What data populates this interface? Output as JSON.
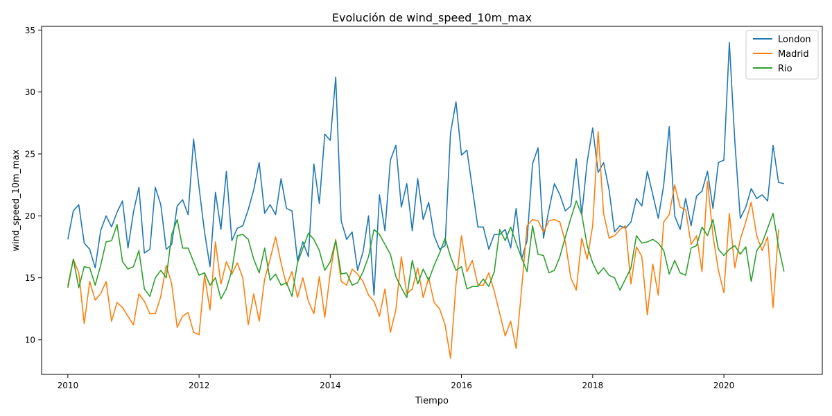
{
  "chart_data": {
    "type": "line",
    "title": "Evolución de wind_speed_10m_max",
    "xlabel": "Tiempo",
    "ylabel": "wind_speed_10m_max",
    "x_start": "2010-01",
    "x_end": "2021-01",
    "x_frequency": "monthly",
    "xlim": [
      2009.6,
      2021.5
    ],
    "ylim": [
      7.2,
      35.3
    ],
    "x_ticks": [
      2010,
      2012,
      2014,
      2016,
      2018,
      2020
    ],
    "x_tick_labels": [
      "2010",
      "2012",
      "2014",
      "2016",
      "2018",
      "2020"
    ],
    "y_ticks": [
      10,
      15,
      20,
      25,
      30,
      35
    ],
    "y_tick_labels": [
      "10",
      "15",
      "20",
      "25",
      "30",
      "35"
    ],
    "grid": false,
    "legend_position": "top-right",
    "series": [
      {
        "name": "London",
        "color": "#1f77b4",
        "values": [
          18.1,
          20.4,
          20.9,
          17.8,
          17.3,
          15.8,
          18.8,
          20.0,
          19.1,
          20.3,
          21.2,
          17.4,
          20.3,
          22.3,
          17.0,
          17.3,
          22.3,
          20.9,
          17.3,
          17.7,
          20.8,
          21.3,
          20.1,
          26.2,
          22.3,
          18.7,
          15.9,
          21.9,
          18.9,
          23.6,
          18.0,
          19.0,
          19.2,
          20.5,
          22.1,
          24.3,
          20.2,
          20.9,
          20.1,
          23.0,
          20.6,
          20.4,
          16.4,
          17.9,
          16.7,
          24.2,
          21.0,
          26.6,
          26.1,
          31.2,
          19.6,
          18.1,
          18.7,
          15.6,
          17.1,
          20.0,
          13.6,
          21.7,
          18.8,
          24.5,
          25.7,
          20.7,
          22.6,
          18.8,
          23.0,
          19.7,
          21.1,
          18.4,
          17.3,
          17.6,
          26.7,
          29.2,
          24.9,
          25.3,
          22.2,
          19.1,
          19.1,
          17.3,
          18.5,
          18.5,
          18.9,
          17.4,
          20.6,
          16.5,
          18.0,
          24.2,
          25.5,
          18.2,
          20.5,
          22.6,
          21.7,
          20.4,
          20.8,
          24.6,
          20.1,
          24.4,
          27.1,
          23.5,
          24.3,
          22.1,
          18.7,
          19.2,
          19.0,
          19.5,
          21.4,
          20.8,
          23.6,
          21.7,
          19.8,
          22.5,
          27.2,
          20.0,
          18.9,
          21.4,
          19.2,
          21.6,
          22.0,
          23.6,
          20.6,
          24.3,
          24.5,
          34.0,
          26.0,
          19.8,
          20.7,
          22.2,
          21.4,
          21.7,
          21.2,
          25.7,
          22.7,
          22.6
        ]
      },
      {
        "name": "Madrid",
        "color": "#ff7f0e",
        "values": [
          14.4,
          16.5,
          15.4,
          11.3,
          14.7,
          13.2,
          13.7,
          14.7,
          11.5,
          13.0,
          12.6,
          11.9,
          11.2,
          13.7,
          13.1,
          12.1,
          12.1,
          13.5,
          16.0,
          14.5,
          11.0,
          11.9,
          12.2,
          10.6,
          10.4,
          15.2,
          12.4,
          17.9,
          14.5,
          16.3,
          15.3,
          16.2,
          15.0,
          11.2,
          13.7,
          11.5,
          14.9,
          16.5,
          18.3,
          16.2,
          14.4,
          15.5,
          13.4,
          15.0,
          13.1,
          12.1,
          15.1,
          11.8,
          15.4,
          18.1,
          14.7,
          14.4,
          15.7,
          15.3,
          14.7,
          13.6,
          13.1,
          11.9,
          14.1,
          10.6,
          12.4,
          16.7,
          13.7,
          14.1,
          15.8,
          13.4,
          15.0,
          13.0,
          12.5,
          11.2,
          8.5,
          14.5,
          18.4,
          15.5,
          16.4,
          14.4,
          14.4,
          15.4,
          13.9,
          12.1,
          10.3,
          11.5,
          9.3,
          14.1,
          19.2,
          19.7,
          19.6,
          18.7,
          19.6,
          19.7,
          19.5,
          17.9,
          15.0,
          14.0,
          18.2,
          16.5,
          19.2,
          26.8,
          20.2,
          18.2,
          18.4,
          18.9,
          19.2,
          14.5,
          17.5,
          16.7,
          12.0,
          16.1,
          13.6,
          19.5,
          20.1,
          22.5,
          20.7,
          20.5,
          17.7,
          18.4,
          15.5,
          22.8,
          18.4,
          15.6,
          13.8,
          20.2,
          15.8,
          18.1,
          19.5,
          21.1,
          18.4,
          17.2,
          18.3,
          12.6,
          18.9
        ]
      },
      {
        "name": "Rio",
        "color": "#2ca02c",
        "values": [
          14.2,
          16.5,
          14.2,
          15.9,
          15.8,
          14.4,
          16.0,
          17.9,
          18.0,
          19.3,
          16.3,
          15.7,
          15.9,
          17.2,
          14.1,
          13.5,
          15.0,
          15.6,
          15.0,
          18.5,
          19.7,
          17.4,
          17.4,
          16.3,
          15.2,
          15.4,
          14.4,
          15.0,
          13.3,
          14.1,
          15.6,
          18.4,
          18.5,
          18.1,
          16.5,
          15.4,
          17.4,
          14.8,
          15.3,
          14.4,
          14.6,
          13.5,
          16.2,
          17.4,
          18.6,
          18.1,
          17.2,
          15.6,
          16.3,
          18.0,
          15.3,
          15.4,
          14.4,
          14.6,
          15.5,
          16.7,
          18.9,
          18.5,
          17.7,
          16.9,
          15.1,
          14.2,
          13.4,
          16.4,
          14.5,
          15.7,
          14.8,
          16.0,
          17.0,
          18.2,
          16.7,
          15.6,
          15.9,
          14.1,
          14.3,
          14.3,
          14.9,
          14.3,
          15.5,
          18.9,
          18.0,
          19.1,
          17.8,
          16.6,
          15.5,
          19.2,
          16.9,
          16.8,
          15.4,
          15.6,
          16.7,
          18.3,
          19.8,
          21.2,
          20.1,
          17.6,
          16.2,
          15.3,
          15.8,
          15.2,
          15.0,
          14.0,
          14.9,
          15.8,
          18.4,
          17.8,
          17.9,
          18.1,
          17.8,
          17.2,
          15.3,
          16.4,
          15.4,
          15.2,
          17.4,
          17.6,
          19.1,
          18.4,
          19.7,
          17.3,
          16.8,
          17.3,
          17.6,
          16.9,
          17.5,
          14.7,
          17.2,
          17.8,
          19.0,
          20.2,
          17.5,
          15.5
        ]
      }
    ]
  }
}
